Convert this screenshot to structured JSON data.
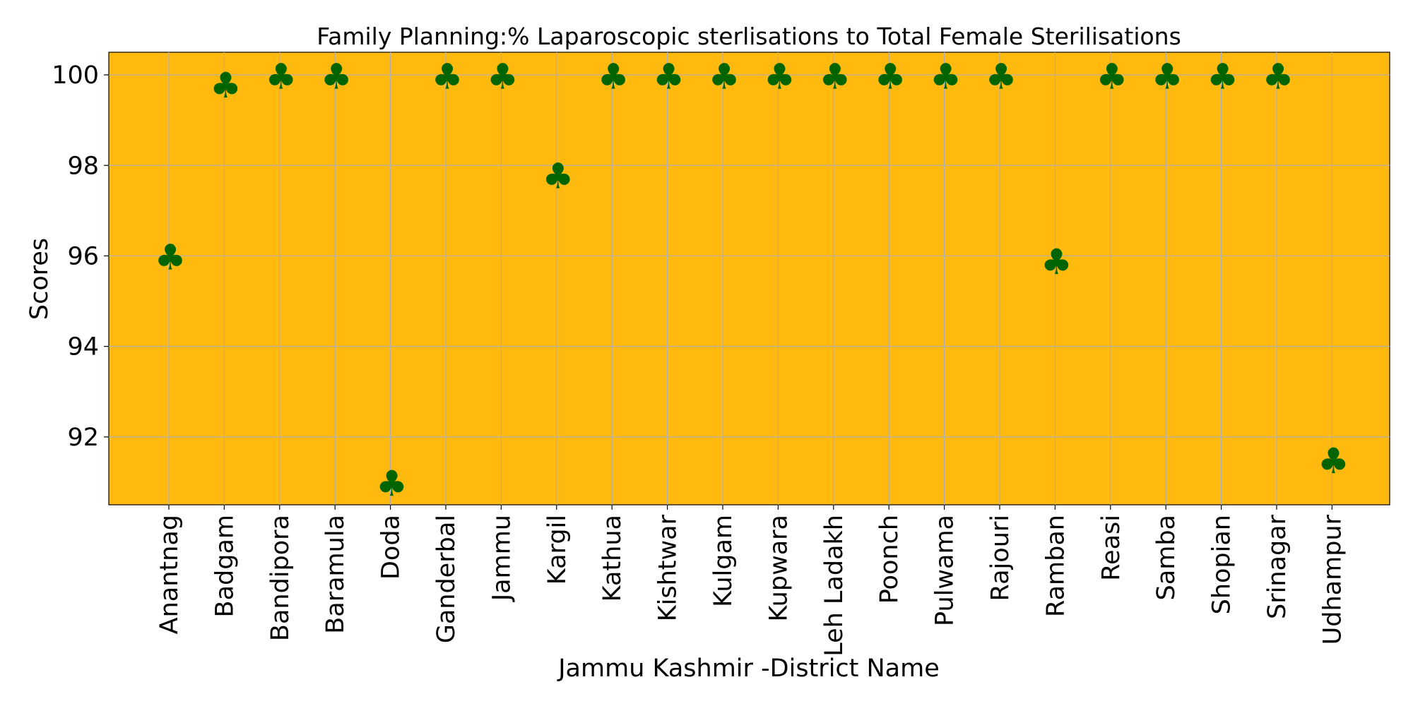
{
  "chart_data": {
    "type": "scatter",
    "title": "Family Planning:% Laparoscopic sterlisations to Total Female Sterilisations",
    "xlabel": "Jammu Kashmir -District Name",
    "ylabel": "Scores",
    "categories": [
      "Anantnag",
      "Badgam",
      "Bandipora",
      "Baramula",
      "Doda",
      "Ganderbal",
      "Jammu",
      "Kargil",
      "Kathua",
      "Kishtwar",
      "Kulgam",
      "Kupwara",
      "Leh Ladakh",
      "Poonch",
      "Pulwama",
      "Rajouri",
      "Ramban",
      "Reasi",
      "Samba",
      "Shopian",
      "Srinagar",
      "Udhampur"
    ],
    "values": [
      95.95,
      99.75,
      99.95,
      99.95,
      90.95,
      99.95,
      99.95,
      97.75,
      99.95,
      99.95,
      99.95,
      99.95,
      99.95,
      99.95,
      99.95,
      99.95,
      95.85,
      99.95,
      99.95,
      99.95,
      99.95,
      91.45
    ],
    "ylim": [
      90.5,
      100.5
    ],
    "yticks": [
      "92",
      "94",
      "96",
      "98",
      "100"
    ],
    "grid": true,
    "marker": "♣",
    "colors": {
      "plot_background": "#FFB90F",
      "marker": "#006400",
      "grid": "#b0b0b0"
    }
  }
}
